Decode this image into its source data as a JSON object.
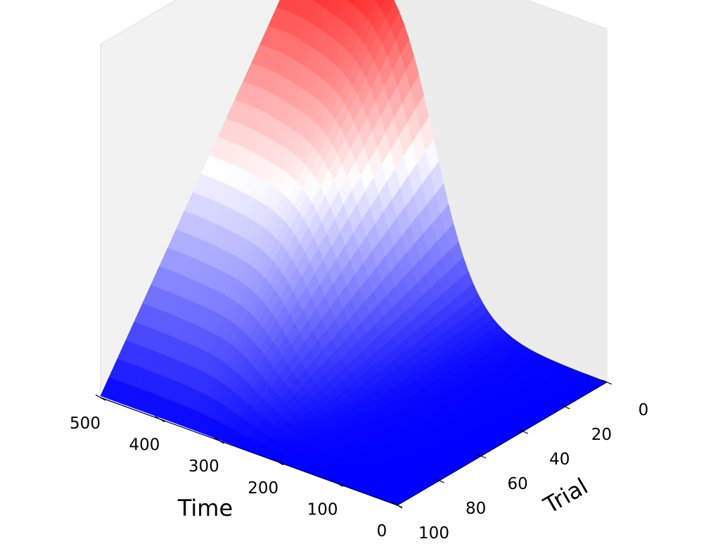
{
  "chart_data": {
    "type": "surface",
    "title": "",
    "xlabel": "Time",
    "ylabel": "Trial",
    "zlabel": "",
    "xlim": [
      0,
      500
    ],
    "ylim": [
      0,
      100
    ],
    "xticks": [
      "0",
      "100",
      "200",
      "300",
      "400",
      "500"
    ],
    "yticks": [
      "0",
      "20",
      "40",
      "60",
      "80",
      "100"
    ],
    "zticks": [],
    "colormap": "bwr",
    "grid": false,
    "description_values": {
      "surface_baseline": 0,
      "peak_location": {
        "time": 500,
        "trial": 0
      }
    },
    "colors": {
      "low": "#0000ff",
      "mid": "#ffffff",
      "high": "#ff0000",
      "pane_left": "#f2f2f2",
      "pane_right": "#ececec",
      "pane_floor": "#f5f5f5",
      "pane_edge": "#e0e0e0"
    }
  }
}
